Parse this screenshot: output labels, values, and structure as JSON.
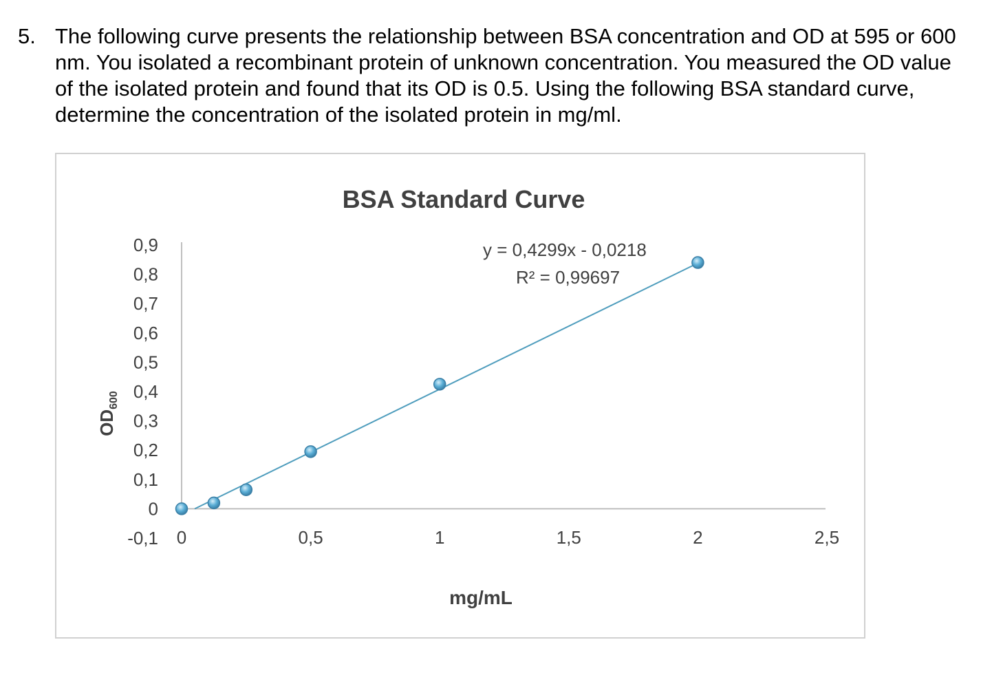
{
  "question": {
    "number": "5.",
    "text": "The following curve presents the relationship between BSA concentration and OD at 595 or 600 nm. You isolated a recombinant protein of unknown concentration. You measured the OD value of the isolated protein and found that its OD is 0.5. Using the following BSA standard curve, determine the concentration of the isolated protein in mg/ml."
  },
  "chart_data": {
    "type": "scatter",
    "title": "BSA Standard Curve",
    "xlabel": "mg/mL",
    "ylabel_main": "OD",
    "ylabel_sub": "600",
    "xlim": [
      0,
      2.5
    ],
    "ylim": [
      -0.1,
      0.9
    ],
    "x_ticks": [
      0,
      0.5,
      1,
      1.5,
      2,
      2.5
    ],
    "x_tick_labels": [
      "0",
      "0,5",
      "1",
      "1,5",
      "2",
      "2,5"
    ],
    "y_ticks": [
      0.9,
      0.8,
      0.7,
      0.6,
      0.5,
      0.4,
      0.3,
      0.2,
      0.1,
      0,
      -0.1
    ],
    "y_tick_labels": [
      "0,9",
      "0,8",
      "0,7",
      "0,6",
      "0,5",
      "0,4",
      "0,3",
      "0,2",
      "0,1",
      "0",
      "-0,1"
    ],
    "series": [
      {
        "x": [
          0,
          0.125,
          0.25,
          0.5,
          1,
          2
        ],
        "y": [
          0,
          0.02,
          0.065,
          0.195,
          0.425,
          0.84
        ]
      }
    ],
    "trendline": {
      "slope": 0.4299,
      "intercept": -0.0218,
      "equation": "y = 0,4299x - 0,0218",
      "r2": "R² = 0,99697"
    },
    "grid": false,
    "legend": "none",
    "colors": {
      "line": "#4f9dbd",
      "marker": "#5aaed6",
      "marker_edge": "#3a7fa6",
      "axis": "#bfbfbf",
      "text": "#404040"
    }
  }
}
